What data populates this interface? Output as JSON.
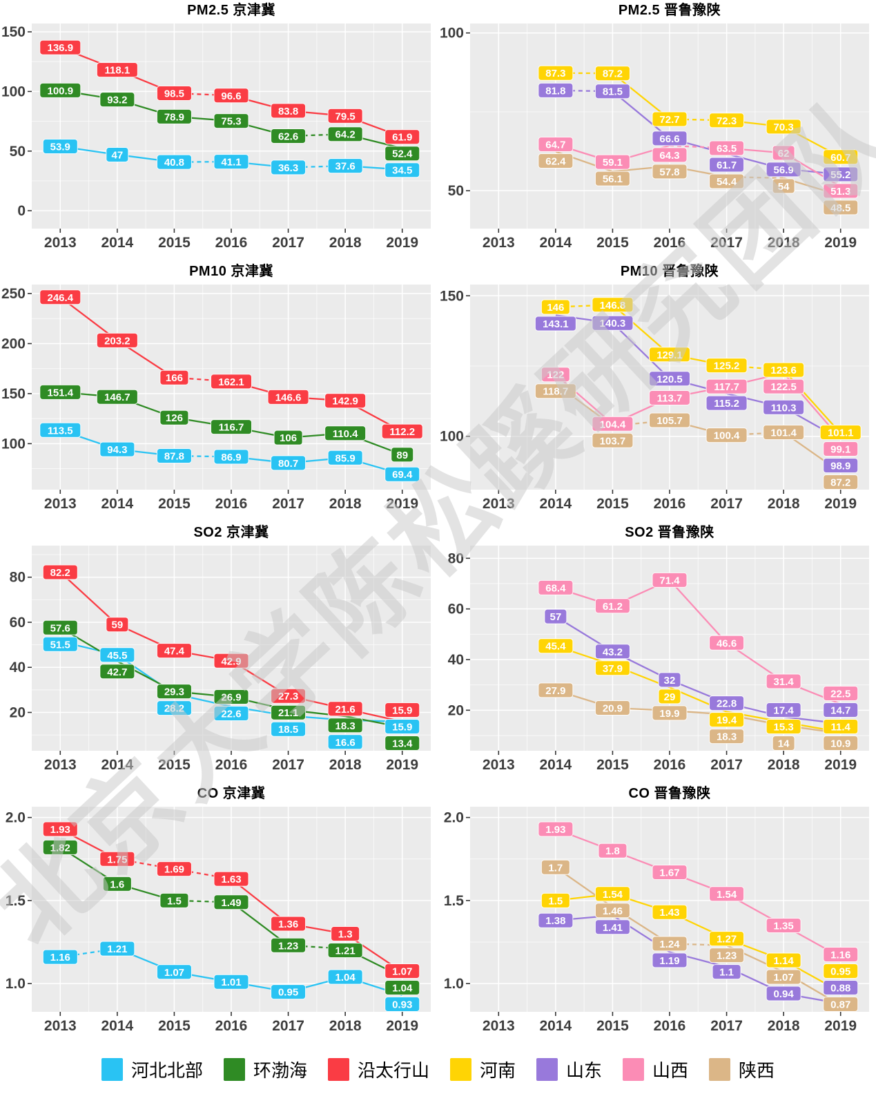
{
  "watermark": "北京大学陈松蹊研究团队",
  "years": [
    "2013",
    "2014",
    "2015",
    "2016",
    "2017",
    "2018",
    "2019"
  ],
  "legend": {
    "items": [
      {
        "label": "河北北部",
        "color": "#29C3F3"
      },
      {
        "label": "环渤海",
        "color": "#2F8B24"
      },
      {
        "label": "沿太行山",
        "color": "#FA3C44"
      },
      {
        "label": "河南",
        "color": "#FFD404"
      },
      {
        "label": "山东",
        "color": "#9879DB"
      },
      {
        "label": "山西",
        "color": "#FB8CB5"
      },
      {
        "label": "陕西",
        "color": "#DBB687"
      }
    ]
  },
  "chart_data": [
    {
      "type": "line",
      "title": "PM2.5 京津冀",
      "ylim": [
        -15,
        157
      ],
      "yticks": [
        {
          "label": "0",
          "v": 0
        },
        {
          "label": "50",
          "v": 50
        },
        {
          "label": "100",
          "v": 100
        },
        {
          "label": "150",
          "v": 150
        }
      ],
      "series": [
        {
          "name": "河北北部",
          "color": "#29C3F3",
          "values": [
            53.9,
            47,
            40.8,
            41.1,
            36.3,
            37.6,
            34.5
          ],
          "dashed_segments": [
            2,
            4
          ]
        },
        {
          "name": "环渤海",
          "color": "#2F8B24",
          "values": [
            100.9,
            93.2,
            78.9,
            75.3,
            62.6,
            64.2,
            52.4
          ],
          "dashed_segments": [
            4
          ]
        },
        {
          "name": "沿太行山",
          "color": "#FA3C44",
          "values": [
            136.9,
            118.1,
            98.5,
            96.6,
            83.8,
            79.5,
            61.9
          ],
          "dashed_segments": [
            2
          ]
        }
      ]
    },
    {
      "type": "line",
      "title": "PM2.5 晋鲁豫陕",
      "ylim": [
        38,
        103
      ],
      "yticks": [
        {
          "label": "50",
          "v": 50
        },
        {
          "label": "100",
          "v": 100
        }
      ],
      "series": [
        {
          "name": "河南",
          "color": "#FFD404",
          "values": [
            null,
            87.3,
            87.2,
            72.7,
            72.3,
            70.3,
            60.7
          ],
          "dashed_segments": [
            1,
            3
          ]
        },
        {
          "name": "山东",
          "color": "#9879DB",
          "values": [
            null,
            81.8,
            81.5,
            66.6,
            61.7,
            56.9,
            55.2
          ],
          "dashed_segments": [
            1
          ]
        },
        {
          "name": "山西",
          "color": "#FB8CB5",
          "values": [
            null,
            64.7,
            59.1,
            64.3,
            63.5,
            62,
            51.3
          ],
          "dashed_segments": [
            3
          ]
        },
        {
          "name": "陕西",
          "color": "#DBB687",
          "values": [
            null,
            62.4,
            56.1,
            57.8,
            54.4,
            54,
            48.5
          ],
          "dashed_segments": [
            4
          ]
        }
      ]
    },
    {
      "type": "line",
      "title": "PM10 京津冀",
      "ylim": [
        54,
        259
      ],
      "yticks": [
        {
          "label": "100",
          "v": 100
        },
        {
          "label": "150",
          "v": 150
        },
        {
          "label": "200",
          "v": 200
        },
        {
          "label": "250",
          "v": 250
        }
      ],
      "series": [
        {
          "name": "河北北部",
          "color": "#29C3F3",
          "values": [
            113.5,
            94.3,
            87.8,
            86.9,
            80.7,
            85.9,
            69.4
          ],
          "dashed_segments": [
            2
          ]
        },
        {
          "name": "环渤海",
          "color": "#2F8B24",
          "values": [
            151.4,
            146.7,
            126,
            116.7,
            106,
            110.4,
            89
          ],
          "dashed_segments": []
        },
        {
          "name": "沿太行山",
          "color": "#FA3C44",
          "values": [
            246.4,
            203.2,
            166,
            162.1,
            146.6,
            142.9,
            112.2
          ],
          "dashed_segments": [
            2
          ]
        }
      ]
    },
    {
      "type": "line",
      "title": "PM10 晋鲁豫陕",
      "ylim": [
        81,
        154
      ],
      "yticks": [
        {
          "label": "100",
          "v": 100
        },
        {
          "label": "150",
          "v": 150
        }
      ],
      "series": [
        {
          "name": "河南",
          "color": "#FFD404",
          "values": [
            null,
            146,
            146.8,
            129.1,
            125.2,
            123.6,
            101.1
          ],
          "dashed_segments": [
            1,
            4
          ]
        },
        {
          "name": "山东",
          "color": "#9879DB",
          "values": [
            null,
            143.1,
            140.3,
            120.5,
            115.2,
            110.3,
            98.9
          ],
          "dashed_segments": []
        },
        {
          "name": "山西",
          "color": "#FB8CB5",
          "values": [
            null,
            122,
            104.4,
            113.7,
            117.7,
            122.5,
            99.1
          ],
          "dashed_segments": []
        },
        {
          "name": "陕西",
          "color": "#DBB687",
          "values": [
            null,
            118.7,
            103.7,
            105.7,
            100.4,
            101.4,
            87.2
          ],
          "dashed_segments": [
            2,
            4
          ]
        }
      ]
    },
    {
      "type": "line",
      "title": "SO2 京津冀",
      "ylim": [
        3,
        94
      ],
      "yticks": [
        {
          "label": "20",
          "v": 20
        },
        {
          "label": "40",
          "v": 40
        },
        {
          "label": "60",
          "v": 60
        },
        {
          "label": "80",
          "v": 80
        }
      ],
      "series": [
        {
          "name": "河北北部",
          "color": "#29C3F3",
          "values": [
            51.5,
            45.5,
            28.2,
            22.6,
            18.5,
            16.6,
            15.9
          ],
          "dashed_segments": []
        },
        {
          "name": "环渤海",
          "color": "#2F8B24",
          "values": [
            57.6,
            42.7,
            29.3,
            26.9,
            21.1,
            18.3,
            13.4
          ],
          "dashed_segments": []
        },
        {
          "name": "沿太行山",
          "color": "#FA3C44",
          "values": [
            82.2,
            59,
            47.4,
            42.9,
            27.3,
            21.6,
            15.9
          ],
          "dashed_segments": []
        }
      ]
    },
    {
      "type": "line",
      "title": "SO2 晋鲁豫陕",
      "ylim": [
        4,
        85
      ],
      "yticks": [
        {
          "label": "20",
          "v": 20
        },
        {
          "label": "40",
          "v": 40
        },
        {
          "label": "60",
          "v": 60
        },
        {
          "label": "80",
          "v": 80
        }
      ],
      "series": [
        {
          "name": "河南",
          "color": "#FFD404",
          "values": [
            null,
            45.4,
            37.9,
            29,
            19.4,
            15.3,
            11.4
          ],
          "dashed_segments": []
        },
        {
          "name": "山东",
          "color": "#9879DB",
          "values": [
            null,
            57,
            43.2,
            32,
            22.8,
            17.4,
            14.7
          ],
          "dashed_segments": []
        },
        {
          "name": "山西",
          "color": "#FB8CB5",
          "values": [
            null,
            68.4,
            61.2,
            71.4,
            46.6,
            31.4,
            22.5
          ],
          "dashed_segments": []
        },
        {
          "name": "陕西",
          "color": "#DBB687",
          "values": [
            null,
            27.9,
            20.9,
            19.9,
            18.3,
            14,
            10.9
          ],
          "dashed_segments": []
        }
      ]
    },
    {
      "type": "line",
      "title": "CO 京津冀",
      "ylim": [
        0.83,
        2.065
      ],
      "yticks": [
        {
          "label": "1.0",
          "v": 1.0
        },
        {
          "label": "1.5",
          "v": 1.5
        },
        {
          "label": "2.0",
          "v": 2.0
        }
      ],
      "series": [
        {
          "name": "河北北部",
          "color": "#29C3F3",
          "values": [
            1.16,
            1.21,
            1.07,
            1.01,
            0.95,
            1.04,
            0.93
          ],
          "dashed_segments": [
            0
          ]
        },
        {
          "name": "环渤海",
          "color": "#2F8B24",
          "values": [
            1.82,
            1.6,
            1.5,
            1.49,
            1.23,
            1.21,
            1.04
          ],
          "dashed_segments": [
            2,
            4
          ]
        },
        {
          "name": "沿太行山",
          "color": "#FA3C44",
          "values": [
            1.93,
            1.75,
            1.69,
            1.63,
            1.36,
            1.3,
            1.07
          ],
          "dashed_segments": [
            1,
            2
          ]
        }
      ]
    },
    {
      "type": "line",
      "title": "CO 晋鲁豫陕",
      "ylim": [
        0.83,
        2.065
      ],
      "yticks": [
        {
          "label": "1.0",
          "v": 1.0
        },
        {
          "label": "1.5",
          "v": 1.5
        },
        {
          "label": "2.0",
          "v": 2.0
        }
      ],
      "series": [
        {
          "name": "河南",
          "color": "#FFD404",
          "values": [
            null,
            1.5,
            1.54,
            1.43,
            1.27,
            1.14,
            0.95
          ],
          "dashed_segments": []
        },
        {
          "name": "山东",
          "color": "#9879DB",
          "values": [
            null,
            1.38,
            1.41,
            1.19,
            1.1,
            0.94,
            0.88
          ],
          "dashed_segments": []
        },
        {
          "name": "山西",
          "color": "#FB8CB5",
          "values": [
            null,
            1.93,
            1.8,
            1.67,
            1.54,
            1.35,
            1.16
          ],
          "dashed_segments": []
        },
        {
          "name": "陕西",
          "color": "#DBB687",
          "values": [
            null,
            1.7,
            1.46,
            1.24,
            1.23,
            1.07,
            0.87
          ],
          "dashed_segments": [
            3
          ]
        }
      ]
    }
  ]
}
